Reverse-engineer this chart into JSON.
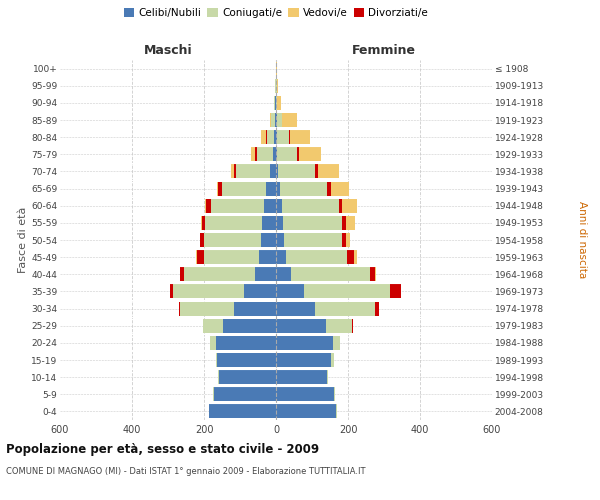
{
  "age_groups": [
    "0-4",
    "5-9",
    "10-14",
    "15-19",
    "20-24",
    "25-29",
    "30-34",
    "35-39",
    "40-44",
    "45-49",
    "50-54",
    "55-59",
    "60-64",
    "65-69",
    "70-74",
    "75-79",
    "80-84",
    "85-89",
    "90-94",
    "95-99",
    "100+"
  ],
  "birth_years": [
    "2004-2008",
    "1999-2003",
    "1994-1998",
    "1989-1993",
    "1984-1988",
    "1979-1983",
    "1974-1978",
    "1969-1973",
    "1964-1968",
    "1959-1963",
    "1954-1958",
    "1949-1953",
    "1944-1948",
    "1939-1943",
    "1934-1938",
    "1929-1933",
    "1924-1928",
    "1919-1923",
    "1914-1918",
    "1909-1913",
    "≤ 1908"
  ],
  "colors": {
    "celibi": "#4a7ab5",
    "coniugati": "#c8d9a8",
    "vedovi": "#f2c96e",
    "divorziati": "#cc0000"
  },
  "maschi": {
    "celibi": [
      185,
      172,
      158,
      163,
      168,
      148,
      118,
      88,
      58,
      48,
      42,
      38,
      32,
      28,
      18,
      8,
      5,
      3,
      2,
      1,
      0
    ],
    "coniugati": [
      0,
      2,
      2,
      5,
      15,
      55,
      148,
      198,
      198,
      152,
      158,
      158,
      148,
      122,
      92,
      45,
      20,
      10,
      3,
      1,
      0
    ],
    "vedovi": [
      0,
      0,
      0,
      0,
      0,
      0,
      0,
      0,
      1,
      1,
      2,
      2,
      3,
      5,
      8,
      12,
      15,
      5,
      1,
      0,
      0
    ],
    "divorziati": [
      0,
      0,
      0,
      0,
      0,
      1,
      3,
      8,
      10,
      20,
      10,
      10,
      15,
      10,
      8,
      5,
      2,
      0,
      0,
      0,
      0
    ]
  },
  "femmine": {
    "celibi": [
      168,
      162,
      142,
      152,
      158,
      138,
      108,
      78,
      42,
      28,
      22,
      20,
      16,
      10,
      6,
      4,
      2,
      2,
      1,
      1,
      0
    ],
    "coniugati": [
      1,
      2,
      3,
      8,
      20,
      72,
      168,
      238,
      218,
      168,
      162,
      162,
      158,
      132,
      102,
      55,
      35,
      15,
      3,
      1,
      0
    ],
    "vedovi": [
      0,
      0,
      0,
      0,
      0,
      0,
      1,
      1,
      3,
      8,
      12,
      25,
      40,
      50,
      60,
      60,
      55,
      40,
      10,
      3,
      2
    ],
    "divorziati": [
      0,
      0,
      0,
      0,
      1,
      3,
      10,
      30,
      15,
      20,
      10,
      12,
      10,
      12,
      8,
      5,
      2,
      1,
      0,
      0,
      0
    ]
  },
  "xlim": 600,
  "title": "Popolazione per età, sesso e stato civile - 2009",
  "subtitle": "COMUNE DI MAGNAGO (MI) - Dati ISTAT 1° gennaio 2009 - Elaborazione TUTTITALIA.IT",
  "ylabel_left": "Fasce di età",
  "ylabel_right": "Anni di nascita",
  "xlabel_left": "Maschi",
  "xlabel_right": "Femmine",
  "legend_labels": [
    "Celibi/Nubili",
    "Coniugati/e",
    "Vedovi/e",
    "Divorziati/e"
  ],
  "background_color": "#ffffff",
  "grid_color": "#cccccc"
}
